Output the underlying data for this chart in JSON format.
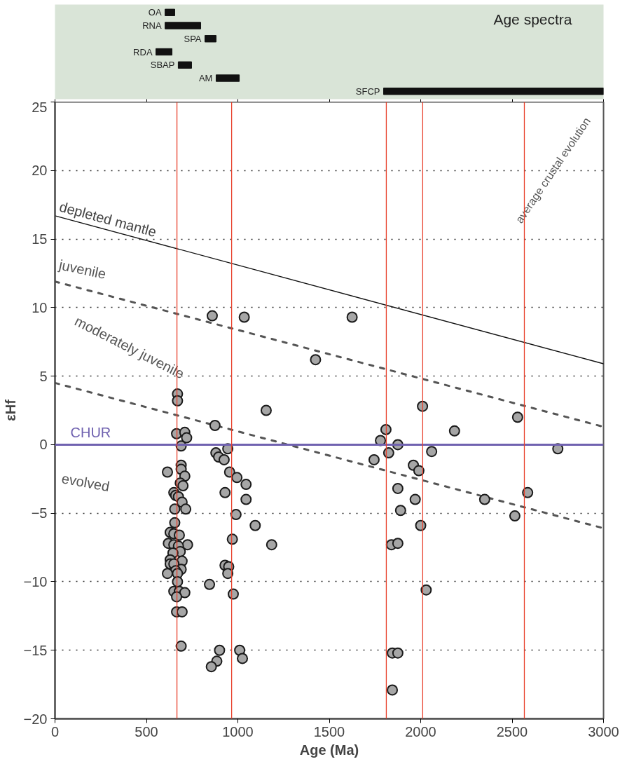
{
  "chart_data": [
    {
      "type": "bar",
      "orientation": "horizontal",
      "title": "Age spectra",
      "categories": [
        "OA",
        "RNA",
        "SPA",
        "RDA",
        "SBAP",
        "AM",
        "SFCP"
      ],
      "xlim": [
        0,
        3000
      ],
      "xticks": [
        0,
        500,
        1000,
        1500,
        2000,
        2500,
        3000
      ],
      "tick_labels": false,
      "values": [
        53,
        195,
        61,
        88,
        73,
        127,
        1203
      ],
      "base": [
        602,
        602,
        820,
        552,
        674,
        881,
        1797
      ],
      "color": "#111111"
    },
    {
      "type": "scatter",
      "xlabel": "Age (Ma)",
      "ylabel": "εHf",
      "xlim": [
        0,
        3000
      ],
      "ylim": [
        -20,
        25
      ],
      "xticks": [
        0,
        500,
        1000,
        1500,
        2000,
        2500,
        3000
      ],
      "yticks": [
        -20,
        -15,
        -10,
        -5,
        0,
        5,
        10,
        15,
        20,
        25
      ],
      "grid": "y",
      "series": [
        {
          "type": "scatter",
          "marker": "circle",
          "color": "#a6a6a6",
          "x": [
            670,
            670,
            665,
            710,
            720,
            690,
            615,
            690,
            690,
            710,
            685,
            700,
            650,
            660,
            675,
            695,
            655,
            715,
            655,
            630,
            650,
            680,
            620,
            650,
            725,
            675,
            685,
            645,
            630,
            695,
            630,
            650,
            690,
            660,
            615,
            670,
            670,
            650,
            680,
            710,
            665,
            665,
            695,
            690,
            875,
            1155,
            880,
            895,
            925,
            945,
            955,
            995,
            1045,
            930,
            1045,
            990,
            1095,
            970,
            1185,
            930,
            950,
            945,
            845,
            975,
            900,
            1010,
            1025,
            885,
            855,
            860,
            1035,
            1625,
            1425,
            2010,
            1810,
            2185,
            2530,
            1780,
            1875,
            1825,
            2060,
            2750,
            1745,
            1960,
            1990,
            1875,
            2585,
            1970,
            2350,
            1890,
            2515,
            2000,
            1840,
            1875,
            2030,
            1845,
            1875,
            1845
          ],
          "values": [
            3.7,
            3.2,
            0.8,
            0.9,
            0.5,
            -0.1,
            -2.0,
            -1.5,
            -1.8,
            -2.3,
            -2.8,
            -3.0,
            -3.5,
            -3.7,
            -3.8,
            -4.2,
            -4.7,
            -4.7,
            -5.7,
            -6.4,
            -6.5,
            -6.6,
            -7.2,
            -7.3,
            -7.3,
            -7.4,
            -7.8,
            -7.9,
            -8.4,
            -8.5,
            -8.7,
            -8.7,
            -9.1,
            -9.2,
            -9.4,
            -9.4,
            -10.0,
            -10.7,
            -10.7,
            -10.8,
            -11.1,
            -12.2,
            -12.2,
            -14.7,
            1.4,
            2.5,
            -0.6,
            -0.9,
            -1.1,
            -0.3,
            -2.0,
            -2.4,
            -2.9,
            -3.5,
            -4.0,
            -5.1,
            -5.9,
            -6.9,
            -7.3,
            -8.8,
            -8.9,
            -9.4,
            -10.2,
            -10.9,
            -15.0,
            -15.0,
            -15.6,
            -15.8,
            -16.2,
            9.4,
            9.3,
            9.3,
            6.2,
            2.8,
            1.1,
            1.0,
            2.0,
            0.3,
            0.0,
            -0.6,
            -0.5,
            -0.3,
            -1.1,
            -1.5,
            -1.9,
            -3.2,
            -3.5,
            -4.0,
            -4.0,
            -4.8,
            -5.2,
            -5.9,
            -7.3,
            -7.2,
            -10.6,
            -15.2,
            -15.2,
            -17.9
          ]
        },
        {
          "type": "line",
          "marker": "none",
          "name": "depleted mantle",
          "color": "#111111",
          "line_style": "solid",
          "x": [
            0,
            3000
          ],
          "values": [
            16.7,
            5.9
          ]
        },
        {
          "type": "line",
          "marker": "none",
          "color": "#555555",
          "line_style": "dashed",
          "x": [
            0,
            3000
          ],
          "values": [
            11.9,
            1.3
          ]
        },
        {
          "type": "line",
          "marker": "none",
          "color": "#555555",
          "line_style": "dashed",
          "x": [
            0,
            3000
          ],
          "values": [
            4.5,
            -6.1
          ]
        }
      ],
      "ref_lines": [
        {
          "axis": "y",
          "value": 0,
          "label": "CHUR",
          "color": "#7062b0"
        },
        {
          "axis": "x",
          "value": 667,
          "label": null,
          "color": "#e8412c"
        },
        {
          "axis": "x",
          "value": 966,
          "label": null,
          "color": "#e8412c"
        },
        {
          "axis": "x",
          "value": 1812,
          "label": null,
          "color": "#e8412c"
        },
        {
          "axis": "x",
          "value": 2011,
          "label": null,
          "color": "#e8412c"
        },
        {
          "axis": "x",
          "value": 2567,
          "label": null,
          "color": "#e8412c"
        }
      ],
      "annotations": [
        "juvenile",
        "moderately juvenile",
        "evolved",
        "average crustal evolution"
      ]
    }
  ]
}
